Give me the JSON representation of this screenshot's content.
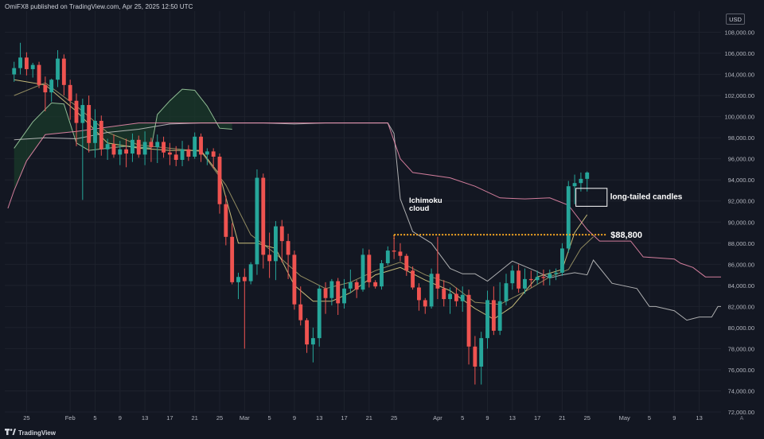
{
  "header": {
    "publisher_text": "OmiFX8 published on TradingView.com, Apr 25, 2025 12:50 UTC"
  },
  "currency": "USD",
  "footer": {
    "brand": "TradingView"
  },
  "axis_button": "A",
  "colors": {
    "background": "#131722",
    "grid": "#1e222d",
    "up": "#26a69a",
    "down": "#ef5350",
    "annotation": "#ffffff",
    "level_line": "#f5a623",
    "cloud_fill": "#1a3a2a",
    "span_a": "#a5d6a7",
    "span_b": "#f48fb1",
    "lagging": "#c9c9c9",
    "conversion": "#e6d98a",
    "base": "#e6d98a"
  },
  "chart_data": {
    "type": "candlestick",
    "title": "",
    "ylim": [
      72000,
      110000
    ],
    "y_ticks": [
      "108,000.00",
      "106,000.00",
      "104,000.00",
      "102,000.00",
      "100,000.00",
      "98,000.00",
      "96,000.00",
      "94,000.00",
      "92,000.00",
      "90,000.00",
      "88,000.00",
      "86,000.00",
      "84,000.00",
      "82,000.00",
      "80,000.00",
      "78,000.00",
      "76,000.00",
      "74,000.00",
      "72,000.00"
    ],
    "x_ticks": [
      {
        "label": "25",
        "idx": 2
      },
      {
        "label": "Feb",
        "idx": 9
      },
      {
        "label": "5",
        "idx": 13
      },
      {
        "label": "9",
        "idx": 17
      },
      {
        "label": "13",
        "idx": 21
      },
      {
        "label": "17",
        "idx": 25
      },
      {
        "label": "21",
        "idx": 29
      },
      {
        "label": "25",
        "idx": 33
      },
      {
        "label": "Mar",
        "idx": 37
      },
      {
        "label": "5",
        "idx": 41
      },
      {
        "label": "9",
        "idx": 45
      },
      {
        "label": "13",
        "idx": 49
      },
      {
        "label": "17",
        "idx": 53
      },
      {
        "label": "21",
        "idx": 57
      },
      {
        "label": "25",
        "idx": 61
      },
      {
        "label": "Apr",
        "idx": 68
      },
      {
        "label": "5",
        "idx": 72
      },
      {
        "label": "9",
        "idx": 76
      },
      {
        "label": "13",
        "idx": 80
      },
      {
        "label": "17",
        "idx": 84
      },
      {
        "label": "21",
        "idx": 88
      },
      {
        "label": "25",
        "idx": 92
      },
      {
        "label": "May",
        "idx": 98
      },
      {
        "label": "5",
        "idx": 102
      },
      {
        "label": "9",
        "idx": 106
      },
      {
        "label": "13",
        "idx": 110
      }
    ],
    "x_index_range": [
      -1.5,
      113.5
    ],
    "candles": [
      [
        104000,
        105200,
        103300,
        104600
      ],
      [
        104600,
        107000,
        104000,
        105600
      ],
      [
        105600,
        106100,
        103900,
        104500
      ],
      [
        104500,
        105100,
        103700,
        104900
      ],
      [
        104900,
        105200,
        102700,
        103000
      ],
      [
        103000,
        103800,
        100500,
        102300
      ],
      [
        102300,
        103600,
        101400,
        103500
      ],
      [
        103500,
        106300,
        102800,
        105500
      ],
      [
        105500,
        105900,
        102000,
        103000
      ],
      [
        103000,
        103500,
        99700,
        101500
      ],
      [
        101500,
        102200,
        97200,
        99400
      ],
      [
        99400,
        101700,
        92100,
        101100
      ],
      [
        101100,
        102000,
        96600,
        97500
      ],
      [
        97500,
        100700,
        96100,
        99600
      ],
      [
        99600,
        100100,
        96300,
        96900
      ],
      [
        96900,
        97900,
        95900,
        97400
      ],
      [
        97400,
        98300,
        96100,
        96400
      ],
      [
        96400,
        97700,
        95400,
        96900
      ],
      [
        96900,
        97900,
        95200,
        96500
      ],
      [
        96500,
        98400,
        95700,
        97800
      ],
      [
        97800,
        98200,
        96100,
        96400
      ],
      [
        96400,
        98600,
        95400,
        97600
      ],
      [
        97600,
        98000,
        95700,
        97100
      ],
      [
        97100,
        98300,
        95600,
        97600
      ],
      [
        97600,
        98100,
        96100,
        96600
      ],
      [
        96600,
        97500,
        95400,
        96400
      ],
      [
        96400,
        97200,
        95300,
        95900
      ],
      [
        95900,
        97700,
        95300,
        96900
      ],
      [
        96900,
        97300,
        95800,
        96200
      ],
      [
        96200,
        98500,
        96000,
        98100
      ],
      [
        98100,
        98400,
        95700,
        96400
      ],
      [
        96400,
        97000,
        95400,
        96700
      ],
      [
        96700,
        97000,
        95100,
        96200
      ],
      [
        96200,
        96500,
        90800,
        91700
      ],
      [
        91700,
        92500,
        87800,
        88600
      ],
      [
        88600,
        89900,
        84100,
        84300
      ],
      [
        84300,
        85200,
        82700,
        84800
      ],
      [
        84800,
        85600,
        78000,
        84400
      ],
      [
        84400,
        86200,
        84100,
        86000
      ],
      [
        86000,
        95000,
        85000,
        94200
      ],
      [
        94200,
        94600,
        85600,
        86900
      ],
      [
        86900,
        89000,
        84700,
        86300
      ],
      [
        86300,
        90100,
        84500,
        89600
      ],
      [
        89600,
        90200,
        86200,
        88200
      ],
      [
        88200,
        88900,
        84600,
        86900
      ],
      [
        86900,
        87300,
        81700,
        82200
      ],
      [
        82200,
        83900,
        80200,
        80700
      ],
      [
        80700,
        80900,
        77600,
        78400
      ],
      [
        78400,
        80000,
        76700,
        79000
      ],
      [
        79000,
        84000,
        78200,
        83700
      ],
      [
        83700,
        84300,
        81300,
        82800
      ],
      [
        82800,
        84600,
        82100,
        84400
      ],
      [
        84400,
        84700,
        81200,
        82300
      ],
      [
        82300,
        84600,
        81800,
        83700
      ],
      [
        83700,
        85500,
        83300,
        84300
      ],
      [
        84300,
        84500,
        82800,
        83600
      ],
      [
        83600,
        87500,
        83400,
        86900
      ],
      [
        86900,
        87400,
        83800,
        84300
      ],
      [
        84300,
        84500,
        83700,
        83900
      ],
      [
        83900,
        86400,
        83600,
        86100
      ],
      [
        86100,
        87700,
        85900,
        87300
      ],
      [
        87300,
        88700,
        86500,
        87200
      ],
      [
        87200,
        88000,
        86300,
        86800
      ],
      [
        86800,
        87000,
        84900,
        85400
      ],
      [
        85400,
        85800,
        83600,
        83800
      ],
      [
        83800,
        84200,
        81600,
        82600
      ],
      [
        82600,
        82800,
        81300,
        82000
      ],
      [
        82000,
        85600,
        81800,
        85100
      ],
      [
        85100,
        88600,
        82700,
        83700
      ],
      [
        83700,
        84500,
        82000,
        82700
      ],
      [
        82700,
        83800,
        81300,
        83200
      ],
      [
        83200,
        83800,
        82000,
        82500
      ],
      [
        82500,
        83900,
        81500,
        83100
      ],
      [
        83100,
        83600,
        76500,
        78200
      ],
      [
        78200,
        79200,
        74600,
        76300
      ],
      [
        76300,
        79600,
        74600,
        79000
      ],
      [
        79000,
        83500,
        78000,
        82600
      ],
      [
        82600,
        83900,
        79300,
        79700
      ],
      [
        79700,
        84300,
        79300,
        82500
      ],
      [
        82500,
        85100,
        82100,
        84200
      ],
      [
        84200,
        85900,
        83600,
        85400
      ],
      [
        85400,
        86000,
        83300,
        83700
      ],
      [
        83700,
        85600,
        83200,
        84600
      ],
      [
        84600,
        85400,
        83800,
        84500
      ],
      [
        84500,
        85400,
        84100,
        84800
      ],
      [
        84800,
        85500,
        84000,
        84700
      ],
      [
        84700,
        85500,
        84000,
        85100
      ],
      [
        85100,
        85600,
        84500,
        85200
      ],
      [
        85200,
        88000,
        84900,
        87500
      ],
      [
        87500,
        93900,
        87100,
        93400
      ],
      [
        93400,
        94500,
        91700,
        93700
      ],
      [
        93700,
        94700,
        92900,
        94100
      ],
      [
        94100,
        94800,
        92900,
        94700
      ]
    ],
    "series": [
      {
        "name": "conversion",
        "points": [
          [
            0,
            103500
          ],
          [
            5,
            103000
          ],
          [
            10,
            100500
          ],
          [
            15,
            97500
          ],
          [
            20,
            97000
          ],
          [
            25,
            96800
          ],
          [
            30,
            96800
          ],
          [
            33,
            94500
          ],
          [
            36,
            88000
          ],
          [
            39,
            88000
          ],
          [
            42,
            87500
          ],
          [
            45,
            84000
          ],
          [
            48,
            82500
          ],
          [
            51,
            82500
          ],
          [
            54,
            83300
          ],
          [
            58,
            85000
          ],
          [
            62,
            85700
          ],
          [
            66,
            84500
          ],
          [
            70,
            83500
          ],
          [
            74,
            81800
          ],
          [
            77,
            80800
          ],
          [
            80,
            82000
          ],
          [
            84,
            84800
          ],
          [
            88,
            85500
          ],
          [
            90,
            89000
          ],
          [
            92,
            90700
          ]
        ]
      },
      {
        "name": "base",
        "points": [
          [
            0,
            102000
          ],
          [
            5,
            103200
          ],
          [
            10,
            101000
          ],
          [
            15,
            98500
          ],
          [
            20,
            97300
          ],
          [
            25,
            97000
          ],
          [
            30,
            96700
          ],
          [
            34,
            93500
          ],
          [
            38,
            88800
          ],
          [
            42,
            87000
          ],
          [
            46,
            84900
          ],
          [
            50,
            83700
          ],
          [
            54,
            84300
          ],
          [
            58,
            85400
          ],
          [
            62,
            86200
          ],
          [
            66,
            85000
          ],
          [
            70,
            84200
          ],
          [
            74,
            82400
          ],
          [
            78,
            82200
          ],
          [
            82,
            83400
          ],
          [
            86,
            84800
          ],
          [
            89,
            85500
          ],
          [
            91,
            87500
          ],
          [
            93,
            88600
          ]
        ]
      },
      {
        "name": "lagging",
        "points": [
          [
            0,
            97800
          ],
          [
            5,
            98000
          ],
          [
            10,
            97900
          ],
          [
            15,
            98500
          ],
          [
            20,
            98800
          ],
          [
            25,
            99300
          ],
          [
            30,
            99400
          ],
          [
            35,
            99400
          ],
          [
            40,
            99400
          ],
          [
            45,
            99300
          ],
          [
            50,
            99400
          ],
          [
            55,
            99400
          ],
          [
            60,
            99400
          ],
          [
            61,
            98400
          ],
          [
            62,
            92200
          ],
          [
            64,
            89100
          ],
          [
            67,
            88000
          ],
          [
            70,
            85600
          ],
          [
            72,
            85100
          ],
          [
            74,
            85100
          ],
          [
            76,
            84400
          ],
          [
            80,
            86300
          ],
          [
            84,
            85300
          ],
          [
            86,
            84700
          ],
          [
            88,
            85000
          ],
          [
            90,
            85200
          ],
          [
            92,
            85000
          ],
          [
            93,
            86400
          ],
          [
            96,
            84200
          ],
          [
            100,
            83700
          ],
          [
            102,
            82000
          ],
          [
            103,
            82000
          ],
          [
            106,
            81600
          ],
          [
            108,
            80700
          ],
          [
            110,
            81000
          ],
          [
            112,
            81000
          ],
          [
            113,
            82000
          ],
          [
            114,
            82000
          ]
        ]
      },
      {
        "name": "span_a",
        "points": [
          [
            0,
            97000
          ],
          [
            3,
            99500
          ],
          [
            6,
            101300
          ],
          [
            8,
            101200
          ],
          [
            10,
            97500
          ],
          [
            12,
            96800
          ],
          [
            18,
            97200
          ],
          [
            22,
            97000
          ],
          [
            23,
            100200
          ],
          [
            25,
            101500
          ],
          [
            27,
            102600
          ],
          [
            29,
            102500
          ],
          [
            31,
            101000
          ],
          [
            33,
            98900
          ],
          [
            35,
            98800
          ]
        ]
      },
      {
        "name": "span_b",
        "points": [
          [
            -1,
            91300
          ],
          [
            0,
            93000
          ],
          [
            2,
            95800
          ],
          [
            5,
            98300
          ],
          [
            10,
            98600
          ],
          [
            15,
            99000
          ],
          [
            20,
            99400
          ],
          [
            25,
            99400
          ],
          [
            30,
            99400
          ],
          [
            35,
            99400
          ],
          [
            40,
            99400
          ],
          [
            45,
            99400
          ],
          [
            50,
            99400
          ],
          [
            55,
            99400
          ],
          [
            60,
            99400
          ],
          [
            62,
            96000
          ],
          [
            64,
            94700
          ],
          [
            70,
            94200
          ],
          [
            74,
            93400
          ],
          [
            78,
            92300
          ],
          [
            82,
            92200
          ],
          [
            86,
            92300
          ],
          [
            89,
            91600
          ],
          [
            92,
            89300
          ],
          [
            94,
            88200
          ],
          [
            99,
            88200
          ],
          [
            101,
            86700
          ],
          [
            106,
            86500
          ],
          [
            107,
            86100
          ],
          [
            109,
            85700
          ],
          [
            111,
            84800
          ],
          [
            114,
            84800
          ]
        ]
      }
    ],
    "cloud": {
      "upper": "span_b",
      "lower": "span_a",
      "from": 0,
      "to": 35
    },
    "annotations": {
      "cloud_label": [
        "Ichimoku",
        "cloud"
      ],
      "long_tail_label": "long-tailed candles",
      "level_label": "$88,800",
      "level_value": 88800,
      "level_from": 61,
      "level_to": 95,
      "box_x": [
        90.2,
        95.2
      ],
      "box_y": [
        91500,
        93200
      ]
    }
  }
}
